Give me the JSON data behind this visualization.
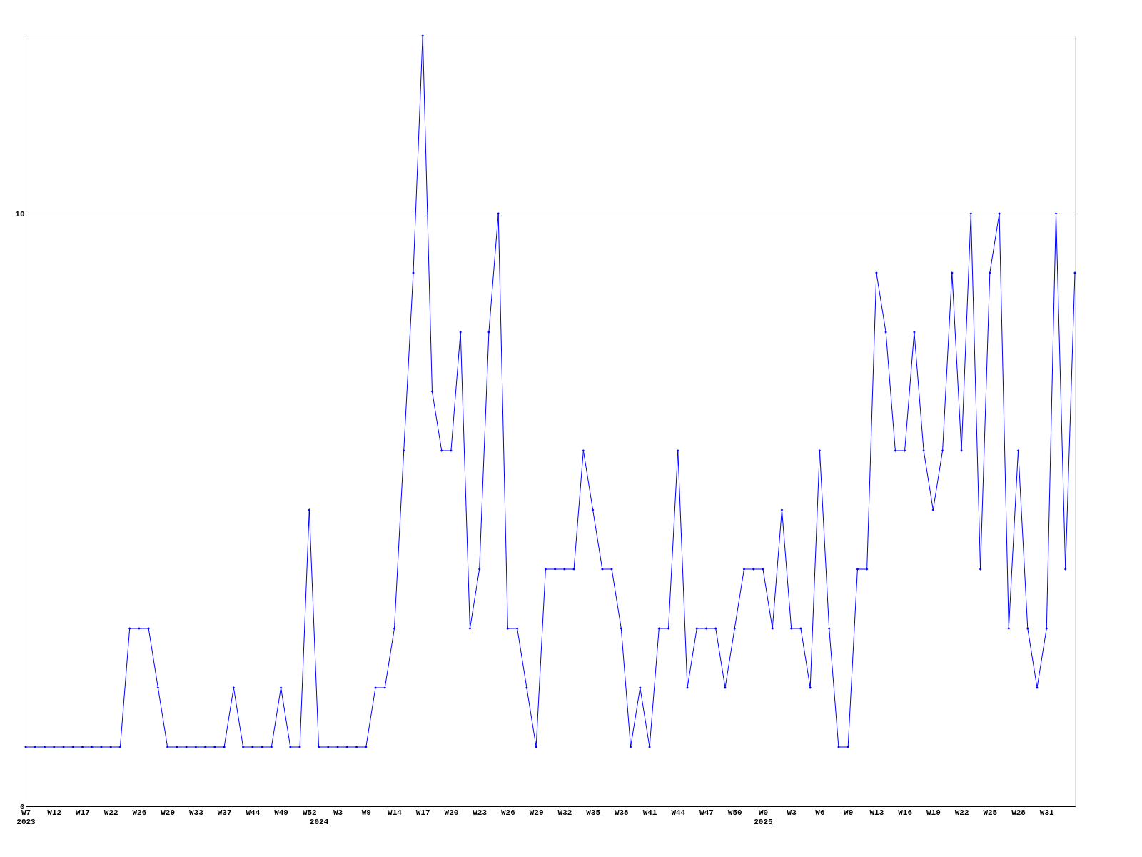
{
  "chart_data": {
    "type": "line",
    "categories": [
      "W7 2023",
      null,
      null,
      "W12",
      null,
      null,
      "W17",
      null,
      null,
      "W22",
      null,
      null,
      "W26",
      null,
      null,
      "W29",
      null,
      null,
      "W33",
      null,
      null,
      "W37",
      null,
      null,
      "W44",
      null,
      null,
      "W49",
      null,
      null,
      "W52",
      "2024",
      null,
      "W3",
      null,
      null,
      "W9",
      null,
      null,
      "W14",
      null,
      null,
      "W17",
      null,
      null,
      "W20",
      null,
      null,
      "W23",
      null,
      null,
      "W26",
      null,
      null,
      "W29",
      null,
      null,
      "W32",
      null,
      null,
      "W35",
      null,
      null,
      "W38",
      null,
      null,
      "W41",
      null,
      null,
      "W44",
      null,
      null,
      "W47",
      null,
      null,
      "W50",
      null,
      null,
      "W0 2025",
      null,
      null,
      "W3",
      null,
      null,
      "W6",
      null,
      null,
      "W9",
      null,
      null,
      "W13",
      null,
      null,
      "W16",
      null,
      null,
      "W19",
      null,
      null,
      "W22",
      null,
      null,
      "W25",
      null,
      null,
      "W28",
      null,
      null,
      "W31",
      null,
      null,
      null
    ],
    "series": [
      {
        "color": "#0000ff",
        "values": [
          1,
          1,
          1,
          1,
          1,
          1,
          1,
          1,
          1,
          1,
          1,
          3,
          3,
          3,
          2,
          1,
          1,
          1,
          1,
          1,
          1,
          1,
          2,
          1,
          1,
          1,
          1,
          2,
          1,
          1,
          5,
          1,
          1,
          1,
          1,
          1,
          1,
          2,
          2,
          3,
          6,
          9,
          13,
          7,
          6,
          6,
          8,
          3,
          4,
          8,
          10,
          3,
          3,
          2,
          1,
          4,
          4,
          4,
          4,
          6,
          5,
          4,
          4,
          3,
          1,
          2,
          1,
          3,
          3,
          6,
          2,
          3,
          3,
          3,
          2,
          3,
          4,
          4,
          4,
          3,
          5,
          3,
          3,
          2,
          6,
          3,
          1,
          1,
          4,
          4,
          9,
          8,
          6,
          6,
          8,
          6,
          5,
          6,
          9,
          6,
          10,
          4,
          9,
          10,
          3,
          6,
          3,
          2,
          3,
          10,
          4,
          9
        ]
      }
    ],
    "ylim": [
      0,
      13
    ],
    "yticks": [
      0,
      10
    ],
    "grid": "y",
    "marker": "diamond"
  }
}
